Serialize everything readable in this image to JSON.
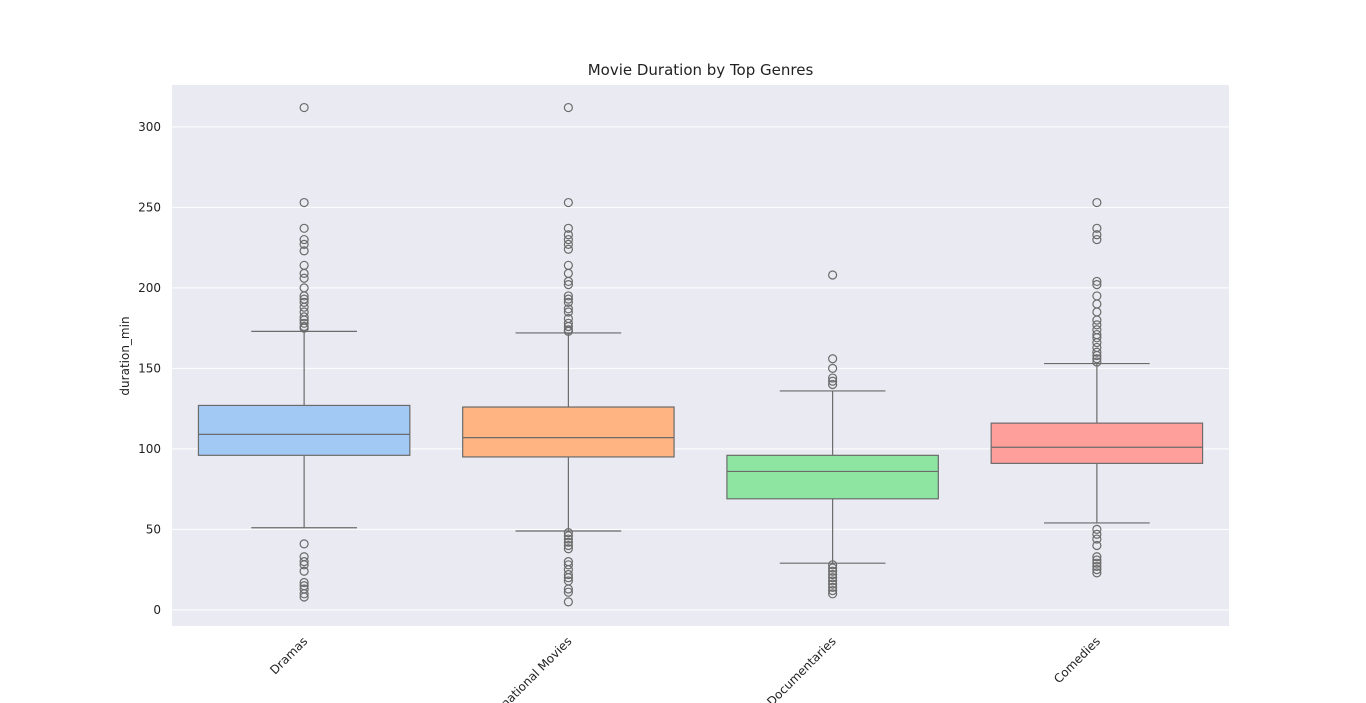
{
  "chart_data": {
    "type": "box",
    "title": "Movie Duration by Top Genres",
    "xlabel": "",
    "ylabel": "duration_min",
    "ylim": [
      -10,
      326
    ],
    "yticks": [
      0,
      50,
      100,
      150,
      200,
      250,
      300
    ],
    "grid": true,
    "colors": {
      "background": "#eaeaf2",
      "grid": "#ffffff",
      "line": "#6b6b6b"
    },
    "categories": [
      "Dramas",
      "International Movies",
      "Documentaries",
      "Comedies"
    ],
    "boxes": [
      {
        "category": "Dramas",
        "color": "#a1c9f4",
        "q1": 96,
        "median": 109,
        "q3": 127,
        "whisker_low": 51,
        "whisker_high": 173,
        "outliers": [
          312,
          253,
          237,
          230,
          227,
          223,
          214,
          209,
          206,
          200,
          195,
          193,
          191,
          188,
          185,
          182,
          180,
          178,
          176,
          175,
          41,
          33,
          30,
          28,
          24,
          17,
          15,
          13,
          10,
          8
        ]
      },
      {
        "category": "International Movies",
        "color": "#ffb482",
        "q1": 95,
        "median": 107,
        "q3": 126,
        "whisker_low": 49,
        "whisker_high": 172,
        "outliers": [
          312,
          253,
          237,
          233,
          230,
          227,
          224,
          214,
          209,
          204,
          202,
          195,
          193,
          191,
          187,
          185,
          181,
          178,
          176,
          174,
          173,
          48,
          46,
          44,
          42,
          40,
          38,
          30,
          28,
          25,
          22,
          20,
          18,
          13,
          11,
          5
        ]
      },
      {
        "category": "Documentaries",
        "color": "#8de5a1",
        "q1": 69,
        "median": 86,
        "q3": 96,
        "whisker_low": 29,
        "whisker_high": 136,
        "outliers": [
          208,
          156,
          150,
          144,
          142,
          140,
          28,
          26,
          24,
          22,
          20,
          18,
          16,
          14,
          12,
          10
        ]
      },
      {
        "category": "Comedies",
        "color": "#ff9f9b",
        "q1": 91,
        "median": 101,
        "q3": 116,
        "whisker_low": 54,
        "whisker_high": 153,
        "outliers": [
          253,
          237,
          233,
          230,
          204,
          202,
          195,
          190,
          185,
          180,
          177,
          174,
          171,
          169,
          166,
          163,
          160,
          158,
          156,
          154,
          50,
          47,
          44,
          40,
          33,
          31,
          29,
          27,
          25,
          23
        ]
      }
    ]
  }
}
